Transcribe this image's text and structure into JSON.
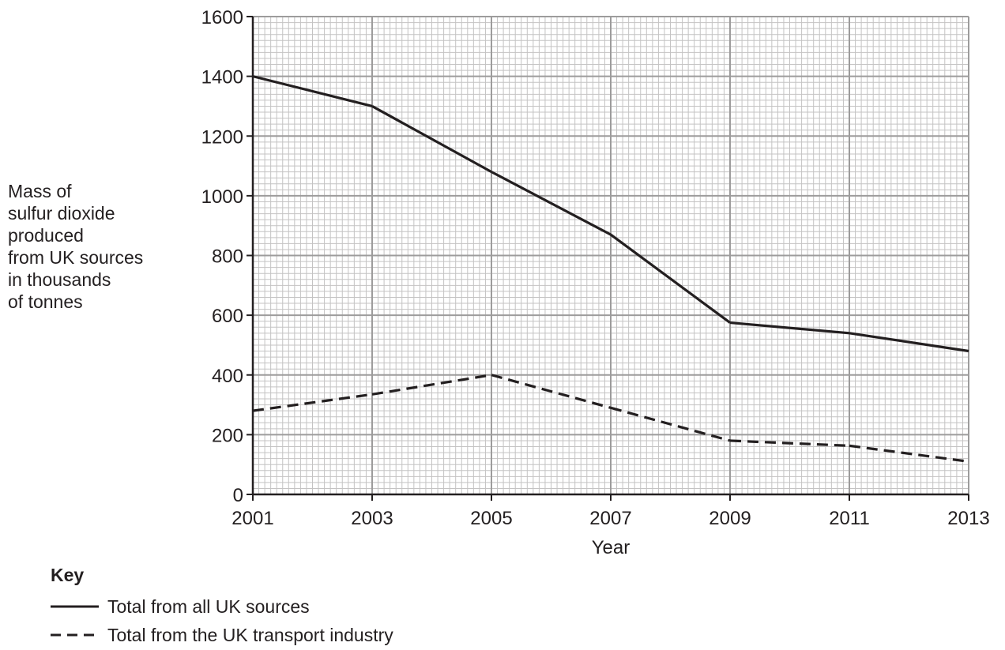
{
  "chart_data": {
    "type": "line",
    "ylabel_lines": [
      "Mass of",
      "sulfur dioxide",
      "produced",
      "from UK sources",
      "in thousands",
      "of tonnes"
    ],
    "xlabel": "Year",
    "x_ticks": [
      "2001",
      "2003",
      "2005",
      "2007",
      "2009",
      "2011",
      "2013"
    ],
    "y_ticks": [
      "0",
      "200",
      "400",
      "600",
      "800",
      "1000",
      "1200",
      "1400",
      "1600"
    ],
    "xlim": [
      2001,
      2013
    ],
    "ylim": [
      0,
      1600
    ],
    "grid": true,
    "series": [
      {
        "name": "Total from all UK sources",
        "style": "solid",
        "color": "#231f20",
        "points": [
          {
            "x": 2001,
            "y": 1400
          },
          {
            "x": 2003,
            "y": 1300
          },
          {
            "x": 2005,
            "y": 1080
          },
          {
            "x": 2007,
            "y": 870
          },
          {
            "x": 2009,
            "y": 575
          },
          {
            "x": 2011,
            "y": 540
          },
          {
            "x": 2013,
            "y": 480
          }
        ]
      },
      {
        "name": "Total from the UK transport industry",
        "style": "dashed",
        "color": "#231f20",
        "points": [
          {
            "x": 2001,
            "y": 280
          },
          {
            "x": 2003,
            "y": 335
          },
          {
            "x": 2005,
            "y": 400
          },
          {
            "x": 2007,
            "y": 290
          },
          {
            "x": 2009,
            "y": 180
          },
          {
            "x": 2011,
            "y": 163
          },
          {
            "x": 2013,
            "y": 110
          }
        ]
      }
    ],
    "legend": {
      "title": "Key",
      "placement": "bottom-left"
    },
    "colors": {
      "grid_major": "#9d9c9c",
      "grid_minor": "#c4c3c3",
      "ink": "#231f20"
    }
  }
}
